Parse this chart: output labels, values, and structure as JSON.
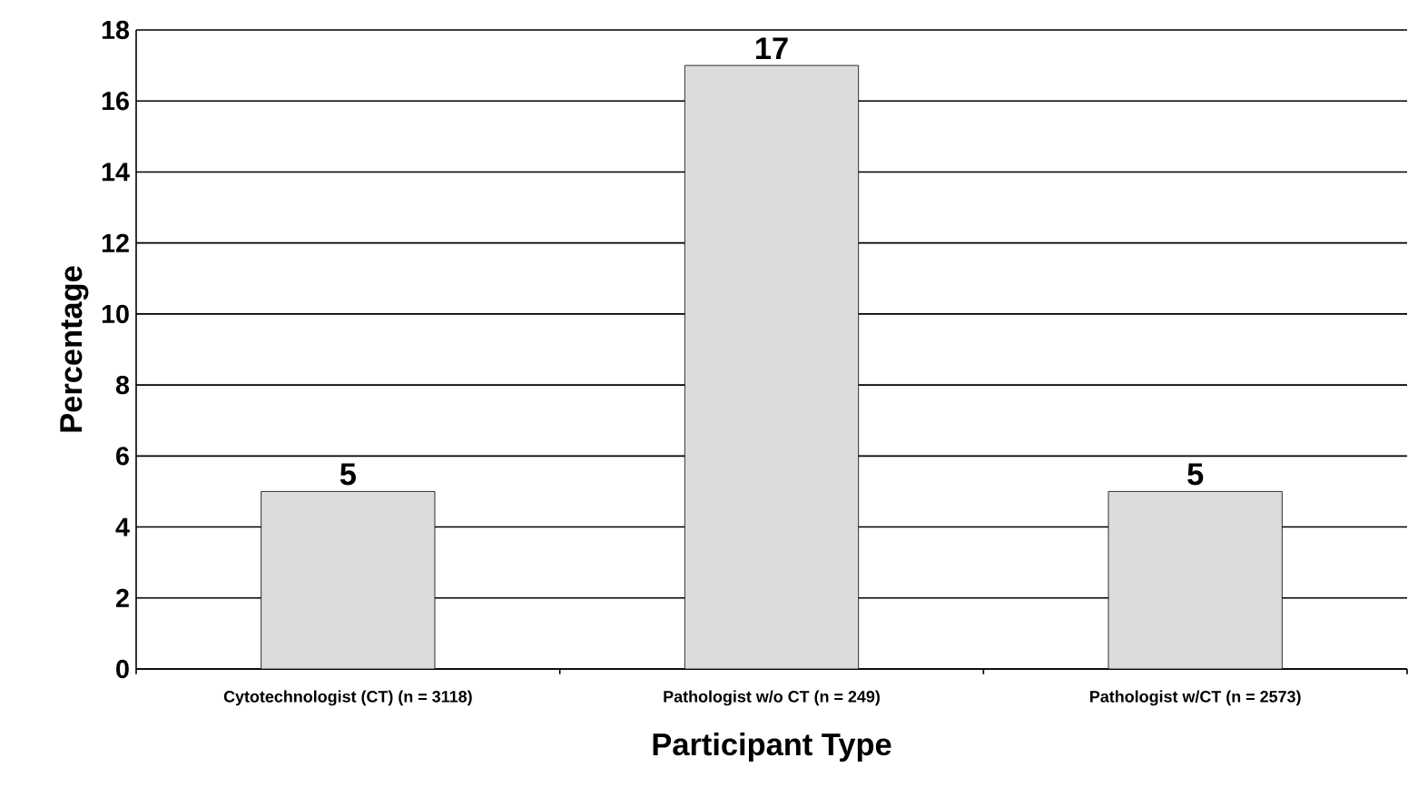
{
  "chart_data": {
    "type": "bar",
    "xlabel": "Participant Type",
    "ylabel": "Percentage",
    "categories": [
      "Cytotechnologist (CT)      (n = 3118)",
      "Pathologist w/o CT      (n = 249)",
      "Pathologist w/CT      (n = 2573)"
    ],
    "values": [
      5,
      17,
      5
    ],
    "color": "#dcdcdc",
    "data_labels": true,
    "ylim": [
      0,
      18
    ],
    "yticks": [
      0,
      2,
      4,
      6,
      8,
      10,
      12,
      14,
      16,
      18
    ],
    "grid": "y"
  }
}
